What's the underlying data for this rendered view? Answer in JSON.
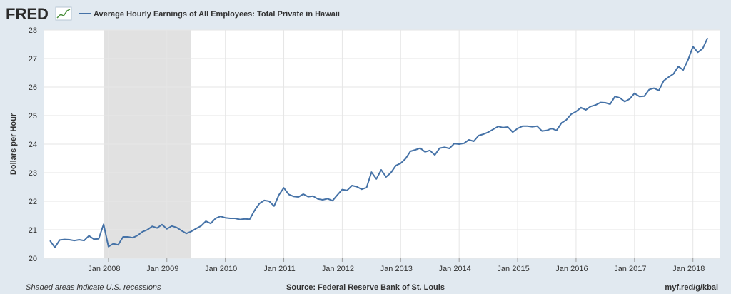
{
  "header": {
    "logo_text": "FRED",
    "logo_icon": "trend-line-icon"
  },
  "chart_data": {
    "type": "line",
    "title": "Average Hourly Earnings of All Employees: Total Private in Hawaii",
    "ylabel": "Dollars per Hour",
    "xlabel": "",
    "ylim": [
      20,
      28
    ],
    "yticks": [
      20,
      21,
      22,
      23,
      24,
      25,
      26,
      27,
      28
    ],
    "xlim": [
      "2007-01",
      "2018-05"
    ],
    "xticks": [
      {
        "x": "2008-01",
        "label": "Jan 2008"
      },
      {
        "x": "2009-01",
        "label": "Jan 2009"
      },
      {
        "x": "2010-01",
        "label": "Jan 2010"
      },
      {
        "x": "2011-01",
        "label": "Jan 2011"
      },
      {
        "x": "2012-01",
        "label": "Jan 2012"
      },
      {
        "x": "2013-01",
        "label": "Jan 2013"
      },
      {
        "x": "2014-01",
        "label": "Jan 2014"
      },
      {
        "x": "2015-01",
        "label": "Jan 2015"
      },
      {
        "x": "2016-01",
        "label": "Jan 2016"
      },
      {
        "x": "2017-01",
        "label": "Jan 2017"
      },
      {
        "x": "2018-01",
        "label": "Jan 2018"
      }
    ],
    "grid": true,
    "recessions": [
      {
        "start": "2007-12",
        "end": "2009-06"
      }
    ],
    "colors": {
      "line": "#4572a7",
      "recession": "#e1e1e1",
      "grid": "#e6e6e6",
      "plot_bg": "#ffffff",
      "page_bg": "#e1e9f0"
    },
    "series": [
      {
        "name": "Average Hourly Earnings of All Employees: Total Private in Hawaii",
        "start": "2007-01",
        "values": [
          20.62,
          20.38,
          20.64,
          20.66,
          20.65,
          20.62,
          20.65,
          20.62,
          20.79,
          20.67,
          20.68,
          21.19,
          20.41,
          20.51,
          20.47,
          20.75,
          20.75,
          20.72,
          20.8,
          20.93,
          21.0,
          21.12,
          21.06,
          21.18,
          21.03,
          21.13,
          21.08,
          20.97,
          20.87,
          20.94,
          21.04,
          21.13,
          21.3,
          21.22,
          21.4,
          21.47,
          21.42,
          21.4,
          21.4,
          21.36,
          21.38,
          21.37,
          21.68,
          21.92,
          22.03,
          22.0,
          21.83,
          22.22,
          22.47,
          22.24,
          22.17,
          22.15,
          22.25,
          22.16,
          22.18,
          22.08,
          22.05,
          22.09,
          22.02,
          22.22,
          22.41,
          22.38,
          22.55,
          22.51,
          22.42,
          22.48,
          23.02,
          22.78,
          23.1,
          22.85,
          23.0,
          23.25,
          23.33,
          23.49,
          23.75,
          23.8,
          23.86,
          23.73,
          23.78,
          23.62,
          23.86,
          23.89,
          23.85,
          24.02,
          24.0,
          24.03,
          24.15,
          24.1,
          24.3,
          24.35,
          24.42,
          24.52,
          24.62,
          24.58,
          24.6,
          24.42,
          24.55,
          24.63,
          24.63,
          24.61,
          24.63,
          24.46,
          24.48,
          24.55,
          24.48,
          24.74,
          24.85,
          25.05,
          25.14,
          25.28,
          25.2,
          25.32,
          25.37,
          25.46,
          25.45,
          25.4,
          25.67,
          25.62,
          25.49,
          25.58,
          25.78,
          25.67,
          25.68,
          25.91,
          25.96,
          25.88,
          26.22,
          26.35,
          26.46,
          26.72,
          26.6,
          26.96,
          27.42,
          27.22,
          27.35,
          27.72
        ]
      }
    ]
  },
  "footer": {
    "recession_note": "Shaded areas indicate U.S. recessions",
    "source": "Source: Federal Reserve Bank of St. Louis",
    "short_url": "myf.red/g/kbal"
  }
}
